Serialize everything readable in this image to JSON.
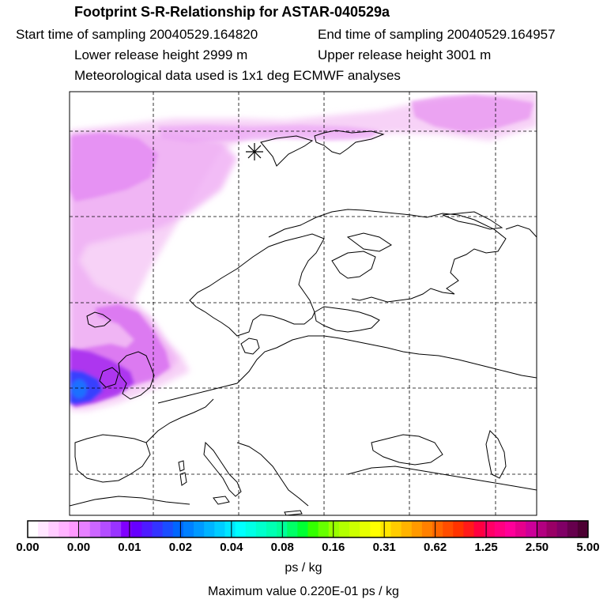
{
  "header": {
    "title": "Footprint S-R-Relationship for ASTAR-040529a",
    "start_time": "Start time of sampling 20040529.164820",
    "end_time": "End time of sampling 20040529.164957",
    "lower_height": "Lower release height 2999 m",
    "upper_height": "Upper release height 3001 m",
    "met_data": "Meteorological data used is 1x1 deg ECMWF analyses"
  },
  "colorbar": {
    "tick_labels": [
      "0.00",
      "0.00",
      "0.01",
      "0.02",
      "0.04",
      "0.08",
      "0.16",
      "0.31",
      "0.62",
      "1.25",
      "2.50",
      "5.00"
    ],
    "units": "ps / kg",
    "colors": [
      "#ffffff",
      "#ffe6ff",
      "#ffccff",
      "#ffb3ff",
      "#ff99ff",
      "#e680ff",
      "#cc66ff",
      "#b34dff",
      "#9933ff",
      "#8000ff",
      "#6600ff",
      "#4d1aff",
      "#3333ff",
      "#1a4dff",
      "#0066ff",
      "#0080ff",
      "#0099ff",
      "#00b3ff",
      "#00ccff",
      "#00e6ff",
      "#00ffff",
      "#00ffe6",
      "#00ffcc",
      "#00ffb3",
      "#00ff99",
      "#00ff66",
      "#00ff33",
      "#33ff00",
      "#66ff00",
      "#99ff00",
      "#b3ff00",
      "#ccff00",
      "#e6ff00",
      "#ffff00",
      "#ffe600",
      "#ffcc00",
      "#ffb300",
      "#ff9900",
      "#ff8000",
      "#ff6600",
      "#ff4d00",
      "#ff3300",
      "#ff1a1a",
      "#ff0040",
      "#ff0066",
      "#ff0080",
      "#ff0099",
      "#e6008c",
      "#cc0099",
      "#b30080",
      "#990066",
      "#800066",
      "#66004d",
      "#4d0033"
    ]
  },
  "footer": {
    "max_value": "Maximum value  0.220E-01 ps / kg"
  },
  "map": {
    "release_site_marker": "asterisk",
    "plume_color_light": "#f5c8f5",
    "plume_color_mid": "#e07cf0",
    "plume_color_dark": "#a020f0",
    "plume_color_core": "#2040ff"
  }
}
